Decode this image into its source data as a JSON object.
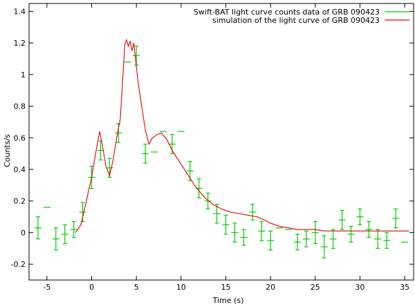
{
  "chart_data": {
    "type": "scatter",
    "title": "",
    "xlabel": "Time (s)",
    "ylabel": "Counts/s",
    "xlim": [
      -7,
      36
    ],
    "ylim": [
      -0.3,
      1.45
    ],
    "xticks": [
      -5,
      0,
      5,
      10,
      15,
      20,
      25,
      30,
      35
    ],
    "yticks": [
      -0.2,
      0,
      0.2,
      0.4,
      0.6,
      0.8,
      1,
      1.2,
      1.4
    ],
    "xtick_labels": [
      "-5",
      "0",
      "5",
      "10",
      "15",
      "20",
      "25",
      "30",
      "35"
    ],
    "ytick_labels": [
      "-0.2",
      "0",
      "0.2",
      "0.4",
      "0.6",
      "0.8",
      "1",
      "1.2",
      "1.4"
    ],
    "grid": false,
    "legend_position": "top-right",
    "series": [
      {
        "name": "Swift-BAT light curve counts data of GRB 090423",
        "kind": "errorbar",
        "color": "#00cc00",
        "x": [
          -6,
          -5,
          -4,
          -3,
          -2,
          -1,
          0,
          1,
          2,
          3,
          4,
          5,
          6,
          7,
          8,
          9,
          10,
          11,
          12,
          13,
          14,
          15,
          16,
          17,
          18,
          19,
          20,
          21,
          22,
          23,
          24,
          25,
          26,
          27,
          28,
          29,
          30,
          31,
          32,
          33,
          34,
          35
        ],
        "y": [
          0.03,
          0.16,
          -0.04,
          -0.01,
          0.02,
          0.13,
          0.35,
          0.52,
          0.41,
          0.63,
          1.08,
          1.12,
          0.5,
          0.51,
          0.64,
          0.56,
          0.64,
          0.39,
          0.28,
          0.2,
          0.12,
          0.05,
          0.0,
          -0.03,
          0.13,
          0.01,
          -0.05,
          0.03,
          0.02,
          -0.06,
          -0.04,
          0.0,
          -0.09,
          -0.04,
          0.08,
          -0.01,
          0.1,
          0.02,
          -0.04,
          -0.05,
          0.09,
          -0.06
        ],
        "err": [
          0.07,
          0.0,
          0.07,
          0.06,
          0.05,
          0.06,
          0.07,
          0.06,
          0.06,
          0.06,
          0.0,
          0.06,
          0.06,
          0.0,
          0.0,
          0.06,
          0.0,
          0.06,
          0.06,
          0.05,
          0.06,
          0.06,
          0.06,
          0.05,
          0.05,
          0.06,
          0.06,
          0.0,
          0.0,
          0.05,
          0.05,
          0.07,
          0.07,
          0.06,
          0.06,
          0.05,
          0.05,
          0.05,
          0.06,
          0.05,
          0.06,
          0.0
        ]
      },
      {
        "name": "simulation of the light curve of GRB 090423",
        "kind": "line",
        "color": "#e00000",
        "x": [
          -1.8,
          -1.2,
          -0.6,
          0.0,
          0.5,
          0.9,
          1.2,
          1.6,
          2.0,
          2.4,
          2.8,
          3.2,
          3.5,
          3.7,
          3.9,
          4.1,
          4.3,
          4.5,
          4.7,
          4.9,
          5.2,
          5.6,
          6.0,
          6.4,
          6.8,
          7.3,
          7.8,
          8.4,
          9.0,
          9.8,
          10.6,
          11.5,
          12.5,
          13.5,
          14.5,
          15.5,
          16.5,
          17.5,
          18.5,
          19.3,
          20.0,
          21.0,
          22.0,
          23.0,
          24.0,
          25.0,
          26.0,
          28.0,
          30.0,
          32.0,
          34.0,
          35.5
        ],
        "y": [
          0.0,
          0.05,
          0.2,
          0.35,
          0.52,
          0.64,
          0.55,
          0.42,
          0.36,
          0.46,
          0.6,
          0.72,
          1.0,
          1.19,
          1.22,
          1.18,
          1.21,
          1.15,
          1.2,
          1.1,
          0.95,
          0.8,
          0.65,
          0.56,
          0.6,
          0.62,
          0.63,
          0.59,
          0.52,
          0.45,
          0.38,
          0.3,
          0.23,
          0.18,
          0.15,
          0.13,
          0.12,
          0.11,
          0.1,
          0.08,
          0.06,
          0.04,
          0.03,
          0.02,
          0.02,
          0.02,
          0.01,
          0.01,
          0.01,
          0.01,
          0.01,
          0.01
        ]
      }
    ]
  }
}
